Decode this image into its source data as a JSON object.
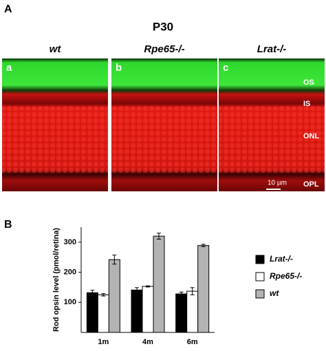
{
  "panel_a": {
    "label": "A",
    "title": "P30",
    "columns": [
      {
        "label": "wt",
        "letter": "a"
      },
      {
        "label": "Rpe65-/-",
        "letter": "b"
      },
      {
        "label": "Lrat-/-",
        "letter": "c"
      }
    ],
    "layers": [
      "OS",
      "IS",
      "ONL",
      "OPL"
    ],
    "scale_bar": "10 µm"
  },
  "chart_data": {
    "type": "bar",
    "panel_label": "B",
    "ylabel": "Rod opsin level (pmol/retina)",
    "categories": [
      "1m",
      "4m",
      "6m"
    ],
    "series": [
      {
        "name": "Lrat-/-",
        "color": "#000000",
        "values": [
          132,
          141,
          128
        ],
        "errors": [
          8,
          8,
          6
        ]
      },
      {
        "name": "Rpe65-/-",
        "color": "#ffffff",
        "values": [
          125,
          153,
          137
        ],
        "errors": [
          4,
          2,
          12
        ]
      },
      {
        "name": "wt",
        "color": "#b3b3b3",
        "values": [
          242,
          320,
          289
        ],
        "errors": [
          15,
          10,
          4
        ]
      }
    ],
    "ylim": [
      0,
      350
    ],
    "yticks": [
      100,
      200,
      300
    ]
  }
}
